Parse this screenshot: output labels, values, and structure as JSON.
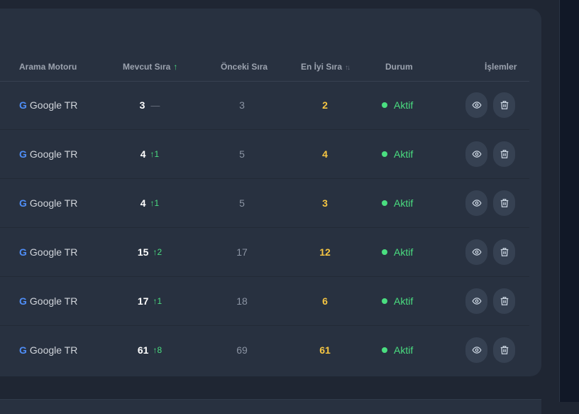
{
  "table": {
    "columns": {
      "engine": "Arama Motoru",
      "current": "Mevcut Sıra",
      "current_sort": "↑",
      "previous": "Önceki Sıra",
      "best": "En İyi Sıra",
      "best_sort": "↑↓",
      "status": "Durum",
      "actions": "İşlemler"
    },
    "rows": [
      {
        "engine_icon": "G",
        "engine": "Google TR",
        "current": "3",
        "change": "—",
        "change_type": "none",
        "previous": "3",
        "best": "2",
        "status": "Aktif"
      },
      {
        "engine_icon": "G",
        "engine": "Google TR",
        "current": "4",
        "change": "↑1",
        "change_type": "up",
        "previous": "5",
        "best": "4",
        "status": "Aktif"
      },
      {
        "engine_icon": "G",
        "engine": "Google TR",
        "current": "4",
        "change": "↑1",
        "change_type": "up",
        "previous": "5",
        "best": "3",
        "status": "Aktif"
      },
      {
        "engine_icon": "G",
        "engine": "Google TR",
        "current": "15",
        "change": "↑2",
        "change_type": "up",
        "previous": "17",
        "best": "12",
        "status": "Aktif"
      },
      {
        "engine_icon": "G",
        "engine": "Google TR",
        "current": "17",
        "change": "↑1",
        "change_type": "up",
        "previous": "18",
        "best": "6",
        "status": "Aktif"
      },
      {
        "engine_icon": "G",
        "engine": "Google TR",
        "current": "61",
        "change": "↑8",
        "change_type": "up",
        "previous": "69",
        "best": "61",
        "status": "Aktif"
      }
    ]
  },
  "icons": {
    "view": "eye-icon",
    "delete": "trash-icon",
    "engine": "google-icon"
  },
  "colors": {
    "status_active": "#4ade80",
    "best_rank": "#f5c542",
    "rank_up": "#4ade80",
    "google_blue": "#4f8ef7"
  }
}
